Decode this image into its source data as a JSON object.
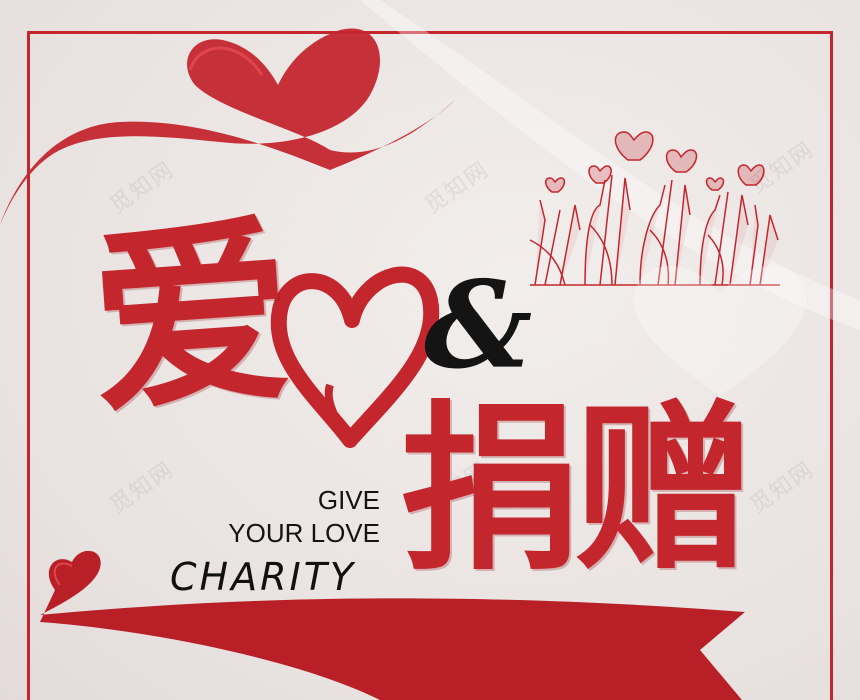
{
  "poster": {
    "title_char_1": "爱",
    "ampersand": "&",
    "title_chars_2": "捐赠",
    "slogan_line_1": "GIVE",
    "slogan_line_2": "YOUR LOVE",
    "slogan_line_3": "CHARITY",
    "watermark_text": "觅知网"
  },
  "colors": {
    "ribbon_red": "#c4262e",
    "background": "#ebe6e4",
    "text_dark": "#141414"
  },
  "icons": [
    "ribbon-heart-icon",
    "brush-heart-icon",
    "raised-hands-illustration",
    "small-heart-icon"
  ]
}
